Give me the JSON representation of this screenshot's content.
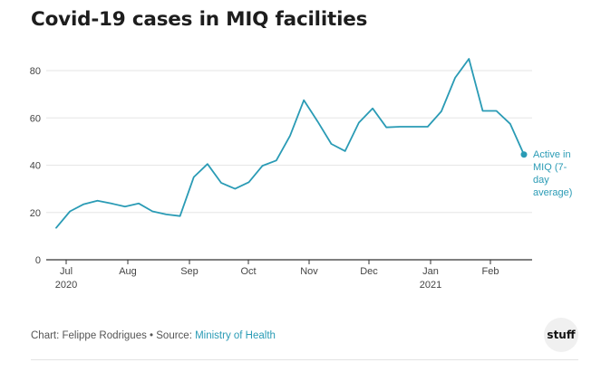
{
  "chart_data": {
    "type": "line",
    "title": "Covid-19 cases in MIQ facilities",
    "xlabel": "",
    "ylabel": "",
    "ylim": [
      0,
      85
    ],
    "yticks": [
      0,
      20,
      40,
      60,
      80
    ],
    "grid": true,
    "x_months": [
      {
        "label": "Jul",
        "year": "2020"
      },
      {
        "label": "Aug",
        "year": ""
      },
      {
        "label": "Sep",
        "year": ""
      },
      {
        "label": "Oct",
        "year": ""
      },
      {
        "label": "Nov",
        "year": ""
      },
      {
        "label": "Dec",
        "year": ""
      },
      {
        "label": "Jan",
        "year": "2021"
      },
      {
        "label": "Feb",
        "year": ""
      }
    ],
    "series": [
      {
        "name": "Active in MIQ (7-day average)",
        "color": "#2a9bb5",
        "x": [
          0,
          1,
          2,
          3,
          4,
          5,
          6,
          7,
          8,
          9,
          10,
          11,
          12,
          13,
          14,
          15,
          16,
          17,
          18,
          19,
          20,
          21,
          22,
          23,
          24,
          25,
          26,
          27,
          28,
          29,
          30,
          31,
          32,
          33,
          34
        ],
        "values": [
          13.5,
          20.5,
          23.5,
          25,
          23.8,
          22.5,
          23.8,
          20.5,
          19.2,
          18.5,
          35,
          40.5,
          32.5,
          30,
          32.8,
          39.8,
          42,
          52.5,
          67.5,
          58.5,
          49,
          46,
          58,
          64,
          56,
          56.3,
          56.3,
          56.3,
          62.8,
          77,
          85,
          63,
          63,
          57.5,
          44.5
        ]
      }
    ],
    "annotation": {
      "lines": [
        "Active in",
        "MIQ (7-",
        "day",
        "average)"
      ]
    }
  },
  "footer": {
    "prefix": "Chart: Felippe Rodrigues • Source: ",
    "source_link": "Ministry of Health"
  },
  "logo": {
    "text": "stuff"
  },
  "colors": {
    "line": "#2a9bb5",
    "grid": "#e6e6e6",
    "axis": "#333333"
  }
}
